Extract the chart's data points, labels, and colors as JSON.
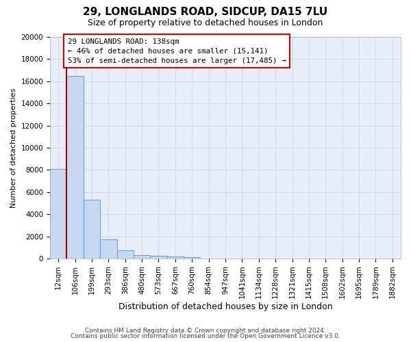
{
  "title_line1": "29, LONGLANDS ROAD, SIDCUP, DA15 7LU",
  "title_line2": "Size of property relative to detached houses in London",
  "xlabel": "Distribution of detached houses by size in London",
  "ylabel": "Number of detached properties",
  "bin_labels": [
    "12sqm",
    "106sqm",
    "199sqm",
    "293sqm",
    "386sqm",
    "480sqm",
    "573sqm",
    "667sqm",
    "760sqm",
    "854sqm",
    "947sqm",
    "1041sqm",
    "1134sqm",
    "1228sqm",
    "1321sqm",
    "1415sqm",
    "1508sqm",
    "1602sqm",
    "1695sqm",
    "1789sqm",
    "1882sqm"
  ],
  "bar_heights": [
    8100,
    16500,
    5300,
    1750,
    750,
    300,
    220,
    180,
    150,
    0,
    0,
    0,
    0,
    0,
    0,
    0,
    0,
    0,
    0,
    0,
    0
  ],
  "bar_color": "#c5d8f0",
  "bar_edge_color": "#6699cc",
  "background_color": "#e8eef8",
  "grid_color": "#d0d8e8",
  "red_line_x": 0.5,
  "annotation_text": "29 LONGLANDS ROAD: 138sqm\n← 46% of detached houses are smaller (15,141)\n53% of semi-detached houses are larger (17,485) →",
  "ylim_max": 20000,
  "yticks": [
    0,
    2000,
    4000,
    6000,
    8000,
    10000,
    12000,
    14000,
    16000,
    18000,
    20000
  ],
  "title_fontsize": 11,
  "subtitle_fontsize": 9,
  "xlabel_fontsize": 9,
  "ylabel_fontsize": 8,
  "tick_fontsize": 7.5,
  "footer_line1": "Contains HM Land Registry data © Crown copyright and database right 2024.",
  "footer_line2": "Contains public sector information licensed under the Open Government Licence v3.0."
}
